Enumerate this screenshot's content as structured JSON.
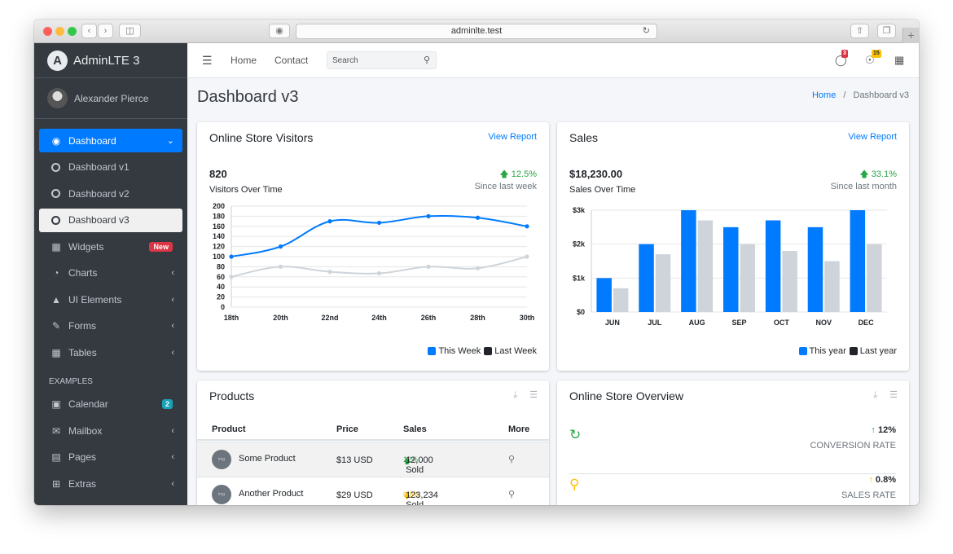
{
  "browser": {
    "url": "adminlte.test"
  },
  "brand": {
    "name": "AdminLTE 3",
    "logo_letter": "A"
  },
  "user": {
    "name": "Alexander Pierce"
  },
  "sidebar": {
    "dashboard": "Dashboard",
    "sub": [
      "Dashboard v1",
      "Dashboard v2",
      "Dashboard v3"
    ],
    "widgets": "Widgets",
    "widgets_badge": "New",
    "charts": "Charts",
    "ui_elements": "UI Elements",
    "forms": "Forms",
    "tables": "Tables",
    "examples_header": "EXAMPLES",
    "calendar": "Calendar",
    "calendar_badge": "2",
    "mailbox": "Mailbox",
    "pages": "Pages",
    "extras": "Extras"
  },
  "navbar": {
    "home": "Home",
    "contact": "Contact",
    "search_placeholder": "Search",
    "messages_count": "3",
    "notifications_count": "15"
  },
  "page": {
    "title": "Dashboard v3",
    "breadcrumb_home": "Home",
    "breadcrumb_current": "Dashboard v3"
  },
  "visitors": {
    "title": "Online Store Visitors",
    "link": "View Report",
    "value": "820",
    "label": "Visitors Over Time",
    "change": "12.5%",
    "since": "Since last week",
    "legend": [
      "This Week",
      "Last Week"
    ]
  },
  "sales": {
    "title": "Sales",
    "link": "View Report",
    "value": "$18,230.00",
    "label": "Sales Over Time",
    "change": "33.1%",
    "since": "Since last month",
    "legend": [
      "This year",
      "Last year"
    ]
  },
  "chart_data": [
    {
      "type": "line",
      "x": [
        "18th",
        "20th",
        "22nd",
        "24th",
        "26th",
        "28th",
        "30th"
      ],
      "series": [
        {
          "name": "This Week",
          "values": [
            100,
            120,
            170,
            167,
            180,
            177,
            160
          ],
          "color": "#007bff"
        },
        {
          "name": "Last Week",
          "values": [
            60,
            80,
            70,
            67,
            80,
            77,
            100
          ],
          "color": "#ced4da"
        }
      ],
      "ylim": [
        0,
        200
      ],
      "yticks": [
        0,
        20,
        40,
        60,
        80,
        100,
        120,
        140,
        160,
        180,
        200
      ],
      "grid": true,
      "legend": "bottom-right"
    },
    {
      "type": "bar",
      "categories": [
        "JUN",
        "JUL",
        "AUG",
        "SEP",
        "OCT",
        "NOV",
        "DEC"
      ],
      "series": [
        {
          "name": "This year",
          "values": [
            1000,
            2000,
            3000,
            2500,
            2700,
            2500,
            3000
          ],
          "color": "#007bff"
        },
        {
          "name": "Last year",
          "values": [
            700,
            1700,
            2700,
            2000,
            1800,
            1500,
            2000
          ],
          "color": "#ced4da"
        }
      ],
      "ylim": [
        0,
        3000
      ],
      "yticks": [
        0,
        1000,
        2000,
        3000
      ],
      "yticklabels": [
        "$0",
        "$1k",
        "$2k",
        "$3k"
      ],
      "grid": true,
      "legend": "bottom-right"
    }
  ],
  "products": {
    "title": "Products",
    "headers": [
      "Product",
      "Price",
      "Sales",
      "More"
    ],
    "rows": [
      {
        "name": "Some Product",
        "price": "$13 USD",
        "change": "12%",
        "direction": "up",
        "sold": "12,000 Sold"
      },
      {
        "name": "Another Product",
        "price": "$29 USD",
        "change": "0.5%",
        "direction": "down",
        "sold": "123,234 Sold"
      }
    ]
  },
  "overview": {
    "title": "Online Store Overview",
    "items": [
      {
        "pct": "12%",
        "label": "CONVERSION RATE",
        "color": "#28a745",
        "icon": "refresh-icon"
      },
      {
        "pct": "0.8%",
        "label": "SALES RATE",
        "color": "#ffc107",
        "icon": "cart-icon"
      }
    ]
  }
}
